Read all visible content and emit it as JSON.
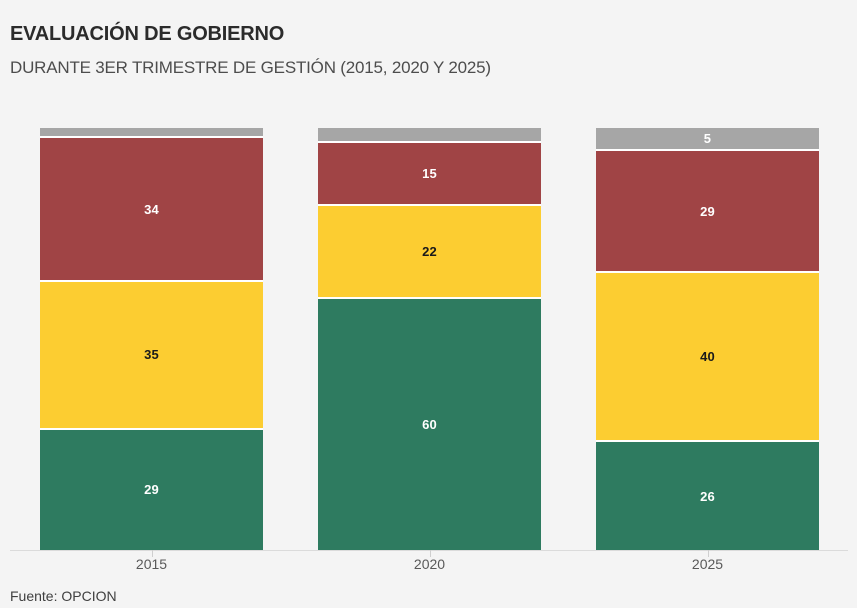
{
  "chart_data": {
    "type": "bar",
    "stacked": true,
    "title": "EVALUACIÓN DE GOBIERNO",
    "subtitle": "DURANTE 3ER TRIMESTRE DE GESTIÓN (2015, 2020 Y 2025)",
    "source": "Fuente: OPCION",
    "categories": [
      "2015",
      "2020",
      "2025"
    ],
    "series": [
      {
        "name": "green",
        "color": "#2E7B60",
        "label_color": "#FFFFFF",
        "values": [
          29,
          60,
          26
        ]
      },
      {
        "name": "yellow",
        "color": "#FCCD31",
        "label_color": "#1A1A1A",
        "values": [
          35,
          22,
          40
        ]
      },
      {
        "name": "red",
        "color": "#A04445",
        "label_color": "#FFFFFF",
        "values": [
          34,
          15,
          29
        ]
      },
      {
        "name": "gray",
        "color": "#A6A6A6",
        "label_color": "#FFFFFF",
        "values": [
          2,
          3,
          5
        ]
      }
    ],
    "visible_value_labels": [
      "34",
      "35",
      "29",
      "15",
      "22",
      "60",
      "5",
      "29",
      "40",
      "26"
    ],
    "ylim": [
      0,
      100
    ],
    "grid": false,
    "legend": "none",
    "background": "#F4F4F4"
  }
}
